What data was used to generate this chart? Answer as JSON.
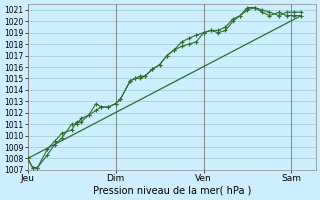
{
  "xlabel": "Pression niveau de la mer( hPa )",
  "bg_color": "#cceeff",
  "grid_color": "#99cccc",
  "line_color": "#2d6e2d",
  "ylim": [
    1007,
    1021.5
  ],
  "yticks": [
    1007,
    1008,
    1009,
    1010,
    1011,
    1012,
    1013,
    1014,
    1015,
    1016,
    1017,
    1018,
    1019,
    1020,
    1021
  ],
  "day_labels": [
    "Jeu",
    "Dim",
    "Ven",
    "Sam"
  ],
  "day_positions": [
    0,
    36,
    72,
    108
  ],
  "xlim": [
    0,
    118
  ],
  "series1": [
    [
      0,
      1008.0
    ],
    [
      2,
      1007.2
    ],
    [
      4,
      1007.2
    ],
    [
      8,
      1008.3
    ],
    [
      11,
      1009.2
    ],
    [
      14,
      1009.8
    ],
    [
      18,
      1011.0
    ],
    [
      20,
      1011.0
    ],
    [
      22,
      1011.5
    ],
    [
      25,
      1011.8
    ],
    [
      28,
      1012.8
    ],
    [
      30,
      1012.5
    ],
    [
      33,
      1012.5
    ],
    [
      36,
      1012.8
    ],
    [
      38,
      1013.2
    ],
    [
      42,
      1014.8
    ],
    [
      44,
      1015.0
    ],
    [
      46,
      1015.2
    ],
    [
      48,
      1015.2
    ],
    [
      51,
      1015.8
    ],
    [
      54,
      1016.2
    ],
    [
      57,
      1017.0
    ],
    [
      60,
      1017.5
    ],
    [
      63,
      1017.8
    ],
    [
      66,
      1018.0
    ],
    [
      69,
      1018.2
    ],
    [
      72,
      1019.0
    ],
    [
      75,
      1019.2
    ],
    [
      78,
      1019.0
    ],
    [
      81,
      1019.2
    ],
    [
      84,
      1020.0
    ],
    [
      87,
      1020.5
    ],
    [
      90,
      1021.0
    ],
    [
      93,
      1021.2
    ],
    [
      96,
      1020.8
    ],
    [
      99,
      1020.5
    ],
    [
      103,
      1020.8
    ],
    [
      106,
      1020.5
    ],
    [
      109,
      1020.5
    ],
    [
      112,
      1020.5
    ]
  ],
  "series2": [
    [
      0,
      1008.0
    ],
    [
      2,
      1007.2
    ],
    [
      4,
      1007.2
    ],
    [
      8,
      1008.8
    ],
    [
      11,
      1009.5
    ],
    [
      14,
      1010.2
    ],
    [
      18,
      1010.5
    ],
    [
      20,
      1011.2
    ],
    [
      22,
      1011.2
    ],
    [
      25,
      1011.8
    ],
    [
      28,
      1012.2
    ],
    [
      30,
      1012.5
    ],
    [
      33,
      1012.5
    ],
    [
      36,
      1012.8
    ],
    [
      38,
      1013.2
    ],
    [
      42,
      1014.8
    ],
    [
      44,
      1015.0
    ],
    [
      46,
      1015.0
    ],
    [
      48,
      1015.2
    ],
    [
      51,
      1015.8
    ],
    [
      54,
      1016.2
    ],
    [
      57,
      1017.0
    ],
    [
      60,
      1017.5
    ],
    [
      63,
      1018.2
    ],
    [
      66,
      1018.5
    ],
    [
      69,
      1018.8
    ],
    [
      72,
      1019.0
    ],
    [
      75,
      1019.2
    ],
    [
      78,
      1019.2
    ],
    [
      81,
      1019.5
    ],
    [
      84,
      1020.2
    ],
    [
      87,
      1020.5
    ],
    [
      90,
      1021.2
    ],
    [
      93,
      1021.2
    ],
    [
      96,
      1021.0
    ],
    [
      99,
      1020.8
    ],
    [
      103,
      1020.5
    ],
    [
      106,
      1020.8
    ],
    [
      109,
      1020.8
    ],
    [
      112,
      1020.8
    ]
  ],
  "trend_line": [
    [
      0,
      1008.0
    ],
    [
      112,
      1020.5
    ]
  ]
}
